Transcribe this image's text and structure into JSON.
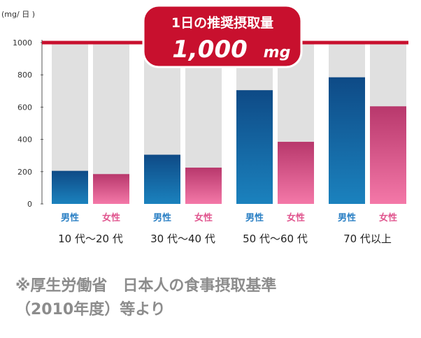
{
  "chart_data": {
    "type": "bar",
    "unit_label": "(mg/ 日 )",
    "ylim": [
      0,
      1000
    ],
    "yticks": [
      "0",
      "200",
      "400",
      "600",
      "800",
      "1000"
    ],
    "grid": false,
    "reference": {
      "value": 1000,
      "label_line1": "1日の推奨摂取量",
      "label_line2": "1,000",
      "label_unit": "mg"
    },
    "groups": [
      "10 代〜20 代",
      "30 代〜40 代",
      "50 代〜60 代",
      "70 代以上"
    ],
    "genders": [
      "男性",
      "女性"
    ],
    "series": [
      {
        "name": "男性",
        "values": [
          205,
          305,
          705,
          785
        ]
      },
      {
        "name": "女性",
        "values": [
          185,
          225,
          385,
          605
        ]
      }
    ]
  },
  "colors": {
    "male_top": "#0e4a86",
    "male_bottom": "#1b82be",
    "female_top": "#b8386c",
    "female_bottom": "#f478a8",
    "male_label": "#2a7fc4",
    "female_label": "#e0558e",
    "reference_line": "#c8102e",
    "background_bar": "#e0e0e0"
  },
  "source": {
    "line1": "※厚生労働省　日本人の食事摂取基準",
    "line2": "（2010年度）等より"
  }
}
